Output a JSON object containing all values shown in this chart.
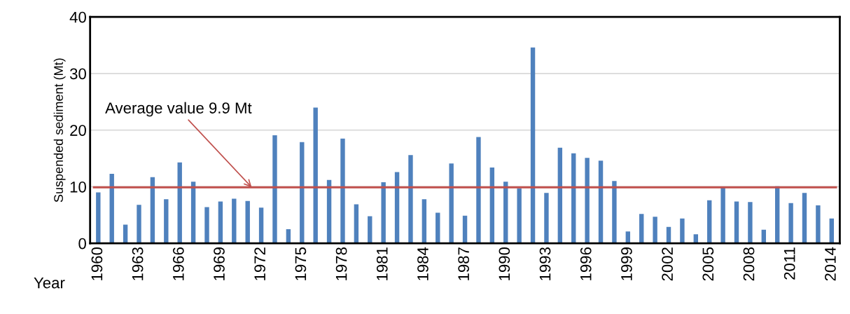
{
  "chart_data": {
    "type": "bar",
    "xlabel": "Year",
    "ylabel": "Suspended sediment (Mt)",
    "categories": [
      "1960",
      null,
      null,
      "1963",
      null,
      null,
      "1966",
      null,
      null,
      "1969",
      null,
      null,
      "1972",
      null,
      null,
      "1975",
      null,
      null,
      "1978",
      null,
      null,
      "1981",
      null,
      null,
      "1984",
      null,
      null,
      "1987",
      null,
      null,
      "1990",
      null,
      null,
      "1993",
      null,
      null,
      "1996",
      null,
      null,
      "1999",
      null,
      null,
      "2002",
      null,
      null,
      "2005",
      null,
      null,
      "2008",
      null,
      null,
      "2011",
      null,
      null,
      "2014"
    ],
    "values": [
      9.0,
      12.3,
      3.3,
      6.8,
      11.7,
      7.8,
      14.3,
      10.9,
      6.4,
      7.4,
      7.9,
      7.5,
      6.3,
      19.1,
      2.5,
      17.9,
      24.0,
      11.2,
      18.5,
      6.9,
      4.8,
      10.8,
      12.6,
      15.6,
      7.8,
      5.4,
      14.1,
      4.9,
      18.8,
      13.4,
      10.9,
      9.7,
      34.6,
      8.9,
      16.9,
      15.9,
      15.1,
      14.6,
      11.0,
      2.1,
      5.2,
      4.7,
      2.9,
      4.4,
      1.6,
      7.6,
      9.8,
      7.4,
      7.3,
      2.4,
      10.1,
      7.1,
      8.9,
      6.7,
      4.4
    ],
    "color": "#4f81bd",
    "ylim": [
      0,
      40
    ],
    "yticks": [
      0,
      10,
      20,
      30,
      40
    ],
    "grid": "y",
    "ref_lines": [
      {
        "axis": "y",
        "value": 9.9,
        "label": "Average value 9.9 Mt",
        "color": "#c0504d"
      }
    ]
  }
}
